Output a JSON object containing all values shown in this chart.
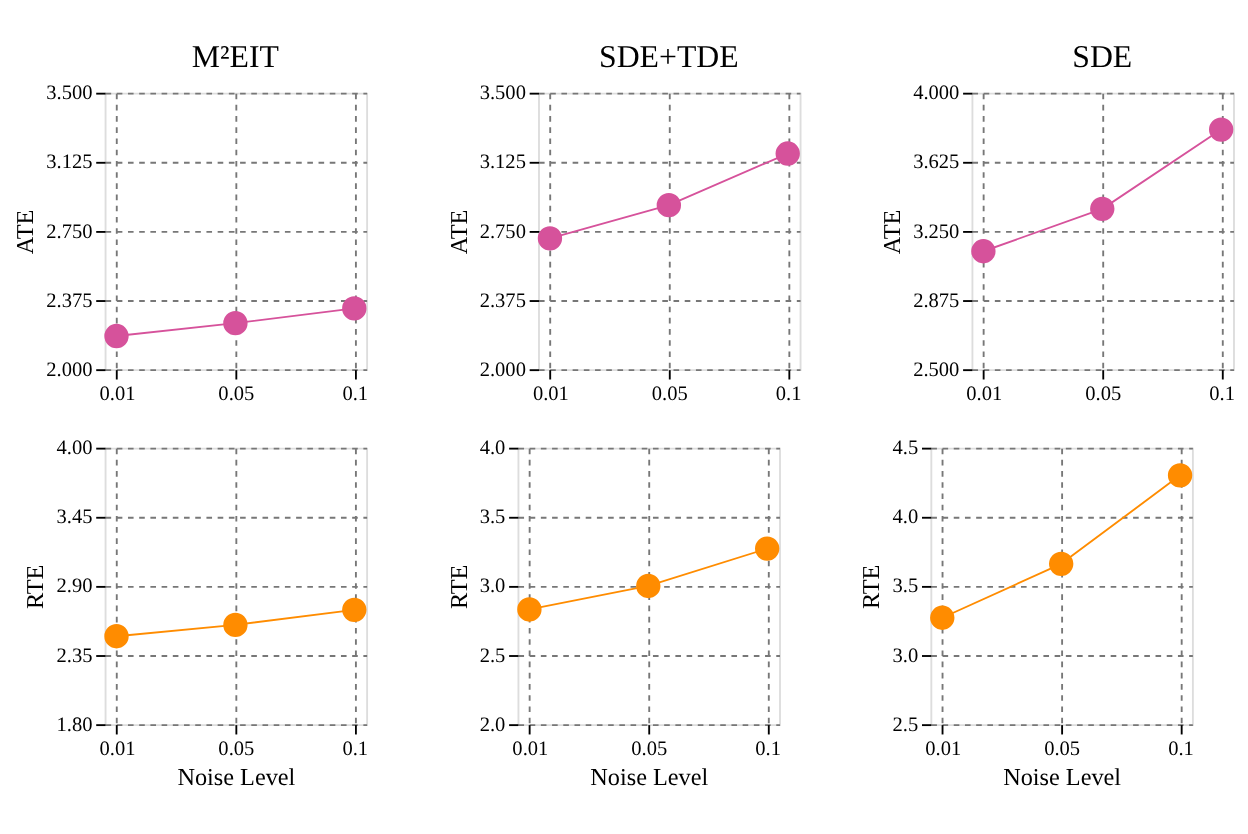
{
  "chart_data": [
    {
      "type": "line",
      "title": "M²EIT",
      "ylabel": "ATE",
      "categories": [
        "0.01",
        "0.05",
        "0.1"
      ],
      "ylim": [
        2,
        3.5
      ],
      "yticks": [
        {
          "value": 2,
          "label": "2.000"
        },
        2.375,
        {
          "value": 2.75,
          "label": "2.750"
        },
        3.125,
        {
          "value": 3.5,
          "label": "3.500"
        }
      ],
      "grid": true,
      "marker": "circle",
      "line_style": "solid",
      "legend": false,
      "series": [
        {
          "color": "#d6529b",
          "values": [
            2.18,
            2.25,
            2.33
          ]
        }
      ]
    },
    {
      "type": "line",
      "title": "SDE+TDE",
      "ylabel": "ATE",
      "categories": [
        "0.01",
        "0.05",
        "0.1"
      ],
      "ylim": [
        2,
        3.5
      ],
      "yticks": [
        {
          "value": 2,
          "label": "2.000"
        },
        2.375,
        {
          "value": 2.75,
          "label": "2.750"
        },
        3.125,
        {
          "value": 3.5,
          "label": "3.500"
        }
      ],
      "grid": true,
      "marker": "circle",
      "line_style": "solid",
      "legend": false,
      "series": [
        {
          "color": "#d6529b",
          "values": [
            2.71,
            2.89,
            3.17
          ]
        }
      ]
    },
    {
      "type": "line",
      "title": "SDE",
      "ylabel": "ATE",
      "categories": [
        "0.01",
        "0.05",
        "0.1"
      ],
      "ylim": [
        2.5,
        4
      ],
      "yticks": [
        {
          "value": 2.5,
          "label": "2.500"
        },
        2.875,
        {
          "value": 3.25,
          "label": "3.250"
        },
        3.625,
        {
          "value": 4,
          "label": "4.000"
        }
      ],
      "grid": true,
      "marker": "circle",
      "line_style": "solid",
      "legend": false,
      "series": [
        {
          "color": "#d6529b",
          "values": [
            3.14,
            3.37,
            3.8
          ]
        }
      ]
    },
    {
      "type": "line",
      "xlabel": "Noise Level",
      "ylabel": "RTE",
      "categories": [
        "0.01",
        "0.05",
        "0.1"
      ],
      "ylim": [
        1.8,
        4
      ],
      "yticks": [
        {
          "value": 1.8,
          "label": "1.80"
        },
        2.35,
        {
          "value": 2.9,
          "label": "2.90"
        },
        3.45,
        {
          "value": 4,
          "label": "4.00"
        }
      ],
      "grid": true,
      "marker": "circle",
      "line_style": "solid",
      "legend": false,
      "series": [
        {
          "color": "#ff8c00",
          "values": [
            2.5,
            2.59,
            2.71
          ]
        }
      ]
    },
    {
      "type": "line",
      "xlabel": "Noise Level",
      "ylabel": "RTE",
      "categories": [
        "0.01",
        "0.05",
        "0.1"
      ],
      "ylim": [
        2,
        4
      ],
      "yticks": [
        {
          "value": 2,
          "label": "2.0"
        },
        2.5,
        {
          "value": 3,
          "label": "3.0"
        },
        3.5,
        {
          "value": 4,
          "label": "4.0"
        }
      ],
      "grid": true,
      "marker": "circle",
      "line_style": "solid",
      "legend": false,
      "series": [
        {
          "color": "#ff8c00",
          "values": [
            2.83,
            3.0,
            3.27
          ]
        }
      ]
    },
    {
      "type": "line",
      "xlabel": "Noise Level",
      "ylabel": "RTE",
      "categories": [
        "0.01",
        "0.05",
        "0.1"
      ],
      "ylim": [
        2.5,
        4.5
      ],
      "yticks": [
        2.5,
        {
          "value": 3,
          "label": "3.0"
        },
        3.5,
        {
          "value": 4,
          "label": "4.0"
        },
        4.5
      ],
      "grid": true,
      "marker": "circle",
      "line_style": "solid",
      "legend": false,
      "series": [
        {
          "color": "#ff8c00",
          "values": [
            3.27,
            3.66,
            4.3
          ]
        }
      ]
    }
  ]
}
